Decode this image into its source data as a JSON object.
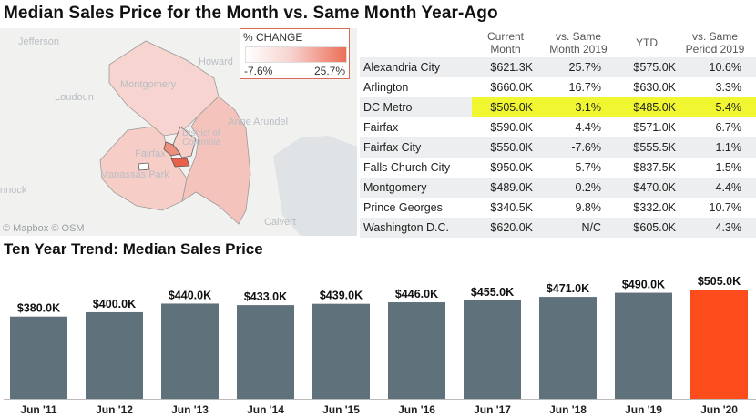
{
  "title": "Median Sales Price for the Month vs. Same Month Year-Ago",
  "map": {
    "places": [
      "Jefferson",
      "Howard",
      "Loudoun",
      "Montgomery",
      "Anne Arundel",
      "District of Columbia",
      "Fairfax",
      "Manassas Park",
      "nnock",
      "Calvert"
    ],
    "attribution": "© Mapbox © OSM",
    "legend": {
      "title": "% CHANGE",
      "min": "-7.6%",
      "max": "25.7%"
    },
    "colors": {
      "low": "#ffffff",
      "high": "#ec6f58",
      "water": "#dfe3e6",
      "land": "#f1f2f0"
    }
  },
  "table": {
    "columns": [
      "Current Month",
      "vs. Same Month 2019",
      "YTD",
      "vs. Same Period 2019"
    ],
    "rows": [
      {
        "name": "Alexandria City",
        "current": "$621.3K",
        "vs_month": "25.7%",
        "ytd": "$575.0K",
        "vs_period": "10.6%"
      },
      {
        "name": "Arlington",
        "current": "$660.0K",
        "vs_month": "16.7%",
        "ytd": "$630.0K",
        "vs_period": "3.3%"
      },
      {
        "name": "DC Metro",
        "current": "$505.0K",
        "vs_month": "3.1%",
        "ytd": "$485.0K",
        "vs_period": "5.4%",
        "highlight": true
      },
      {
        "name": "Fairfax",
        "current": "$590.0K",
        "vs_month": "4.4%",
        "ytd": "$571.0K",
        "vs_period": "6.7%"
      },
      {
        "name": "Fairfax City",
        "current": "$550.0K",
        "vs_month": "-7.6%",
        "ytd": "$555.5K",
        "vs_period": "1.1%"
      },
      {
        "name": "Falls Church City",
        "current": "$950.0K",
        "vs_month": "5.7%",
        "ytd": "$837.5K",
        "vs_period": "-1.5%"
      },
      {
        "name": "Montgomery",
        "current": "$489.0K",
        "vs_month": "0.2%",
        "ytd": "$470.0K",
        "vs_period": "4.4%"
      },
      {
        "name": "Prince Georges",
        "current": "$340.5K",
        "vs_month": "9.8%",
        "ytd": "$332.0K",
        "vs_period": "10.7%"
      },
      {
        "name": "Washington D.C.",
        "current": "$620.0K",
        "vs_month": "N/C",
        "ytd": "$605.0K",
        "vs_period": "4.3%"
      }
    ],
    "highlight_color": "#f0f731"
  },
  "trend_title": "Ten Year Trend: Median Sales Price",
  "chart_data": {
    "type": "bar",
    "title": "Ten Year Trend: Median Sales Price",
    "categories": [
      "Jun '11",
      "Jun '12",
      "Jun '13",
      "Jun '14",
      "Jun '15",
      "Jun '16",
      "Jun '17",
      "Jun '18",
      "Jun '19",
      "Jun '20"
    ],
    "values": [
      380.0,
      400.0,
      440.0,
      433.0,
      439.0,
      446.0,
      455.0,
      471.0,
      490.0,
      505.0
    ],
    "labels": [
      "$380.0K",
      "$400.0K",
      "$440.0K",
      "$433.0K",
      "$439.0K",
      "$446.0K",
      "$455.0K",
      "$471.0K",
      "$490.0K",
      "$505.0K"
    ],
    "ylim": [
      0,
      505
    ],
    "grid": false,
    "colors": {
      "bar": "#5f717a",
      "highlight": "#fc4c1c"
    },
    "highlight_index": 9
  }
}
